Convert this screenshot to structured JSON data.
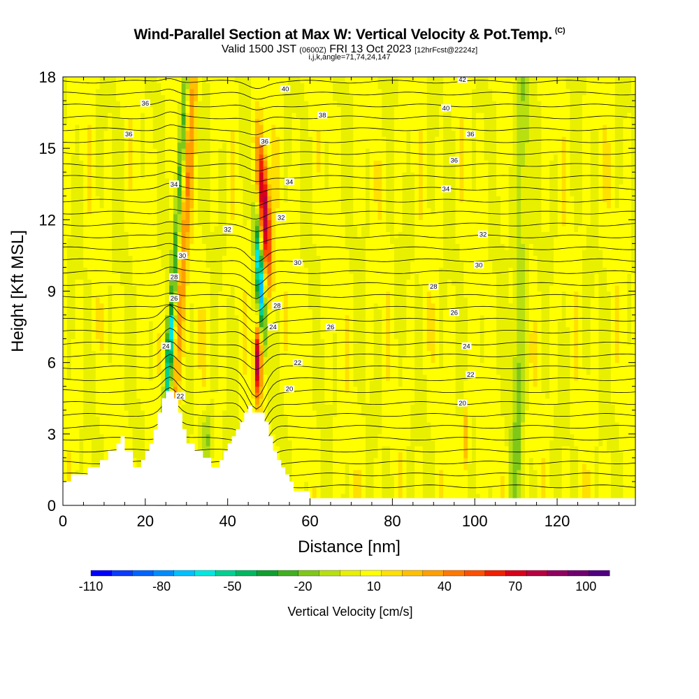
{
  "header": {
    "title": "Wind-Parallel Section at Max W: Vertical Velocity & Pot.Temp.",
    "copyright_mark": "(C)",
    "valid_prefix": "Valid 1500 JST",
    "valid_utc": "(0600Z)",
    "valid_date": "FRI 13 Oct 2023",
    "forecast_info": "[12hrFcst@2224z]",
    "section_params": "i,j,k,angle=71,74,24,147"
  },
  "chart_data": {
    "type": "heatmap",
    "xlabel": "Distance [nm]",
    "ylabel": "Height [Kft MSL]",
    "xlim": [
      0,
      139
    ],
    "ylim": [
      0,
      18
    ],
    "x_ticks": [
      0,
      20,
      40,
      60,
      80,
      100,
      120
    ],
    "y_ticks": [
      0,
      3,
      6,
      9,
      12,
      15,
      18
    ],
    "colorbar": {
      "label": "Vertical Velocity [cm/s]",
      "range": [
        -110,
        110
      ],
      "tick_values": [
        -110,
        -80,
        -50,
        -20,
        10,
        40,
        70,
        100
      ],
      "colors": [
        "#0000ff",
        "#0a3cff",
        "#0064ff",
        "#008cff",
        "#00c0ff",
        "#00e8e0",
        "#00d090",
        "#00b860",
        "#10a030",
        "#40b020",
        "#80c818",
        "#b8e010",
        "#e8f000",
        "#ffff00",
        "#ffe000",
        "#ffc000",
        "#ffa000",
        "#ff7800",
        "#ff5000",
        "#f02000",
        "#d8001a",
        "#b80040",
        "#900060",
        "#700070",
        "#500080"
      ]
    },
    "theta_contour_labels": [
      {
        "x": 20,
        "y": 16.9,
        "label": "36"
      },
      {
        "x": 16,
        "y": 15.6,
        "label": "36"
      },
      {
        "x": 27,
        "y": 13.5,
        "label": "34"
      },
      {
        "x": 40,
        "y": 11.6,
        "label": "32"
      },
      {
        "x": 29,
        "y": 10.5,
        "label": "30"
      },
      {
        "x": 27,
        "y": 9.6,
        "label": "28"
      },
      {
        "x": 27,
        "y": 8.7,
        "label": "26"
      },
      {
        "x": 25,
        "y": 6.7,
        "label": "24"
      },
      {
        "x": 28.5,
        "y": 4.6,
        "label": "22"
      },
      {
        "x": 54,
        "y": 17.5,
        "label": "40"
      },
      {
        "x": 49,
        "y": 15.3,
        "label": "36"
      },
      {
        "x": 55,
        "y": 13.6,
        "label": "34"
      },
      {
        "x": 53,
        "y": 12.1,
        "label": "32"
      },
      {
        "x": 57,
        "y": 10.2,
        "label": "30"
      },
      {
        "x": 52,
        "y": 8.4,
        "label": "28"
      },
      {
        "x": 51,
        "y": 7.5,
        "label": "24"
      },
      {
        "x": 57,
        "y": 6.0,
        "label": "22"
      },
      {
        "x": 55,
        "y": 4.9,
        "label": "20"
      },
      {
        "x": 65,
        "y": 7.5,
        "label": "26"
      },
      {
        "x": 63,
        "y": 16.4,
        "label": "38"
      },
      {
        "x": 97,
        "y": 17.9,
        "label": "42"
      },
      {
        "x": 93,
        "y": 16.7,
        "label": "40"
      },
      {
        "x": 99,
        "y": 15.6,
        "label": "36"
      },
      {
        "x": 95,
        "y": 14.5,
        "label": "36"
      },
      {
        "x": 93,
        "y": 13.3,
        "label": "34"
      },
      {
        "x": 102,
        "y": 11.4,
        "label": "32"
      },
      {
        "x": 101,
        "y": 10.1,
        "label": "30"
      },
      {
        "x": 90,
        "y": 9.2,
        "label": "28"
      },
      {
        "x": 95,
        "y": 8.1,
        "label": "26"
      },
      {
        "x": 98,
        "y": 6.7,
        "label": "24"
      },
      {
        "x": 99,
        "y": 5.5,
        "label": "22"
      },
      {
        "x": 97,
        "y": 4.3,
        "label": "20"
      }
    ],
    "terrain_profile": [
      [
        0,
        1
      ],
      [
        2,
        1
      ],
      [
        2,
        1.3
      ],
      [
        6,
        1.3
      ],
      [
        6,
        1.6
      ],
      [
        9,
        1.6
      ],
      [
        9,
        1.9
      ],
      [
        11,
        1.9
      ],
      [
        11,
        2.3
      ],
      [
        13,
        2.3
      ],
      [
        13,
        2.6
      ],
      [
        14,
        2.6
      ],
      [
        14,
        2.9
      ],
      [
        15,
        2.9
      ],
      [
        15,
        2.3
      ],
      [
        17,
        2.3
      ],
      [
        17,
        1.6
      ],
      [
        19,
        1.6
      ],
      [
        19,
        1.9
      ],
      [
        20,
        1.9
      ],
      [
        20,
        2.3
      ],
      [
        21,
        2.3
      ],
      [
        21,
        2.6
      ],
      [
        22,
        2.6
      ],
      [
        22,
        3.2
      ],
      [
        23,
        3.2
      ],
      [
        23,
        3.9
      ],
      [
        24,
        3.9
      ],
      [
        24,
        4.5
      ],
      [
        25,
        4.5
      ],
      [
        25,
        4.8
      ],
      [
        27,
        4.8
      ],
      [
        27,
        4.5
      ],
      [
        28,
        4.5
      ],
      [
        28,
        3.9
      ],
      [
        29,
        3.9
      ],
      [
        29,
        3.2
      ],
      [
        30,
        3.2
      ],
      [
        30,
        2.6
      ],
      [
        32,
        2.6
      ],
      [
        32,
        2.3
      ],
      [
        34,
        2.3
      ],
      [
        34,
        2.0
      ],
      [
        36,
        2.0
      ],
      [
        36,
        1.6
      ],
      [
        38,
        1.6
      ],
      [
        38,
        1.9
      ],
      [
        39,
        1.9
      ],
      [
        39,
        2.3
      ],
      [
        40,
        2.3
      ],
      [
        40,
        2.6
      ],
      [
        41,
        2.6
      ],
      [
        41,
        2.9
      ],
      [
        42,
        2.9
      ],
      [
        42,
        3.2
      ],
      [
        43,
        3.2
      ],
      [
        43,
        3.5
      ],
      [
        44,
        3.5
      ],
      [
        44,
        3.9
      ],
      [
        45,
        3.9
      ],
      [
        45,
        4.2
      ],
      [
        46,
        4.2
      ],
      [
        46,
        3.9
      ],
      [
        49,
        3.9
      ],
      [
        49,
        3.5
      ],
      [
        50,
        3.5
      ],
      [
        50,
        2.9
      ],
      [
        51,
        2.9
      ],
      [
        51,
        2.3
      ],
      [
        52,
        2.3
      ],
      [
        52,
        1.9
      ],
      [
        53,
        1.9
      ],
      [
        53,
        1.6
      ],
      [
        54,
        1.6
      ],
      [
        54,
        1.3
      ],
      [
        55,
        1.3
      ],
      [
        55,
        1.0
      ],
      [
        56,
        1.0
      ],
      [
        56,
        0.6
      ],
      [
        60,
        0.6
      ],
      [
        60,
        0.3
      ],
      [
        139,
        0.3
      ]
    ]
  }
}
